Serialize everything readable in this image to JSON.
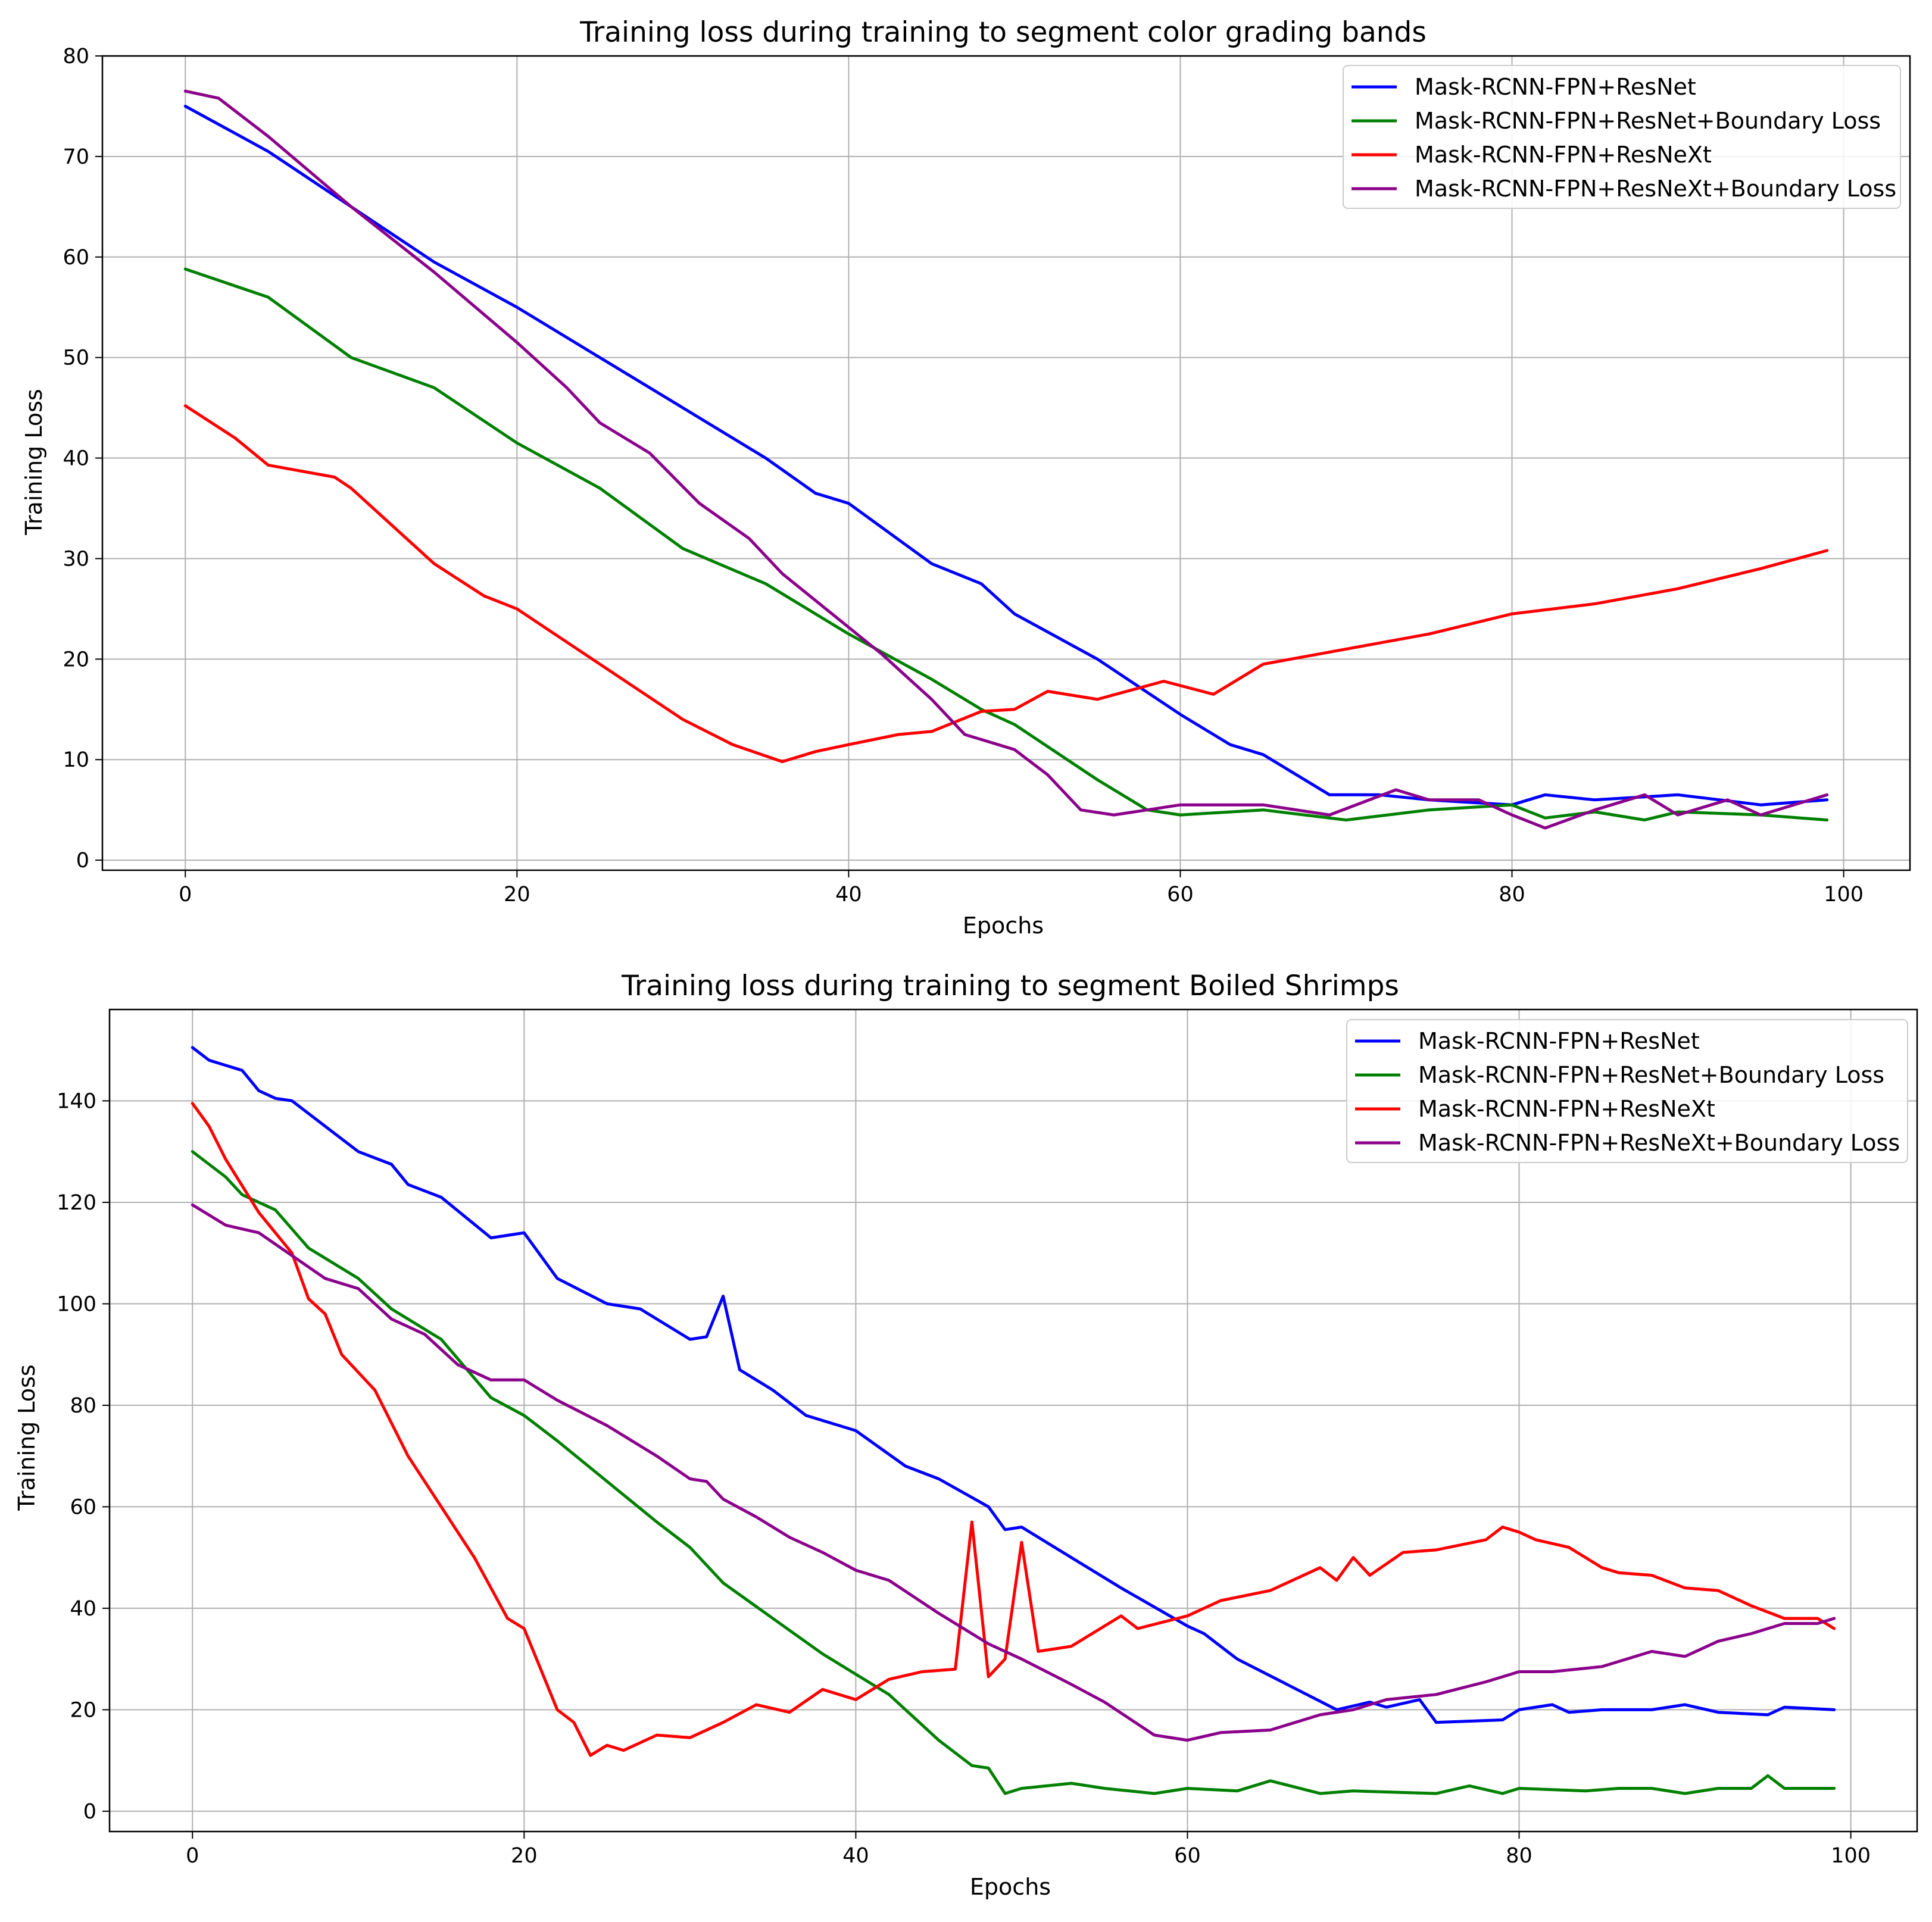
{
  "colors": {
    "resnet": "#0000ff",
    "resnet_boundary": "#008000",
    "resnext": "#ff0000",
    "resnext_boundary": "#8b008b",
    "grid": "#b0b0b0",
    "axis": "#000000"
  },
  "chart_data": [
    {
      "type": "line",
      "title": "Training loss during training to segment color grading bands",
      "xlabel": "Epochs",
      "ylabel": "Training Loss",
      "xlim": [
        -5,
        104
      ],
      "ylim": [
        -1,
        80
      ],
      "xticks": [
        0,
        20,
        40,
        60,
        80,
        100
      ],
      "yticks": [
        0,
        10,
        20,
        30,
        40,
        50,
        60,
        70,
        80
      ],
      "grid": true,
      "legend_position": "top-right",
      "series": [
        {
          "name": "Mask-RCNN-FPN+ResNet",
          "color_key": "resnet",
          "x": [
            0,
            5,
            10,
            15,
            20,
            25,
            30,
            35,
            38,
            40,
            45,
            48,
            50,
            55,
            60,
            63,
            65,
            69,
            72,
            75,
            80,
            82,
            85,
            90,
            95,
            99
          ],
          "y": [
            75.0,
            70.5,
            65.0,
            59.5,
            55.0,
            50.0,
            45.0,
            40.0,
            36.5,
            35.5,
            29.5,
            27.5,
            24.5,
            20.0,
            14.5,
            11.5,
            10.5,
            6.5,
            6.5,
            6.0,
            5.5,
            6.5,
            6.0,
            6.5,
            5.5,
            6.0
          ]
        },
        {
          "name": "Mask-RCNN-FPN+ResNet+Boundary Loss",
          "color_key": "resnet_boundary",
          "x": [
            0,
            5,
            10,
            15,
            20,
            25,
            30,
            35,
            40,
            45,
            48,
            50,
            55,
            58,
            60,
            65,
            70,
            75,
            80,
            82,
            85,
            88,
            90,
            95,
            99
          ],
          "y": [
            58.8,
            56.0,
            50.0,
            47.0,
            41.5,
            37.0,
            31.0,
            27.5,
            22.5,
            18.0,
            15.0,
            13.5,
            8.0,
            5.0,
            4.5,
            5.0,
            4.0,
            5.0,
            5.5,
            4.2,
            4.8,
            4.0,
            4.8,
            4.5,
            4.0
          ]
        },
        {
          "name": "Mask-RCNN-FPN+ResNeXt",
          "color_key": "resnext",
          "x": [
            0,
            3,
            5,
            9,
            10,
            15,
            18,
            20,
            25,
            30,
            33,
            36,
            38,
            40,
            43,
            45,
            48,
            50,
            52,
            55,
            59,
            62,
            65,
            70,
            75,
            80,
            85,
            90,
            95,
            99
          ],
          "y": [
            45.2,
            42.0,
            39.3,
            38.1,
            37.0,
            29.5,
            26.3,
            25.0,
            19.5,
            14.0,
            11.5,
            9.8,
            10.8,
            11.5,
            12.5,
            12.8,
            14.8,
            15.0,
            16.8,
            16.0,
            17.8,
            16.5,
            19.5,
            21.0,
            22.5,
            24.5,
            25.5,
            27.0,
            29.0,
            30.8
          ]
        },
        {
          "name": "Mask-RCNN-FPN+ResNeXt+Boundary Loss",
          "color_key": "resnext_boundary",
          "x": [
            0,
            2,
            5,
            10,
            15,
            20,
            23,
            25,
            28,
            31,
            34,
            36,
            39,
            42,
            45,
            47,
            50,
            52,
            54,
            56,
            58,
            60,
            65,
            69,
            73,
            75,
            78,
            80,
            82,
            85,
            88,
            90,
            93,
            95,
            99
          ],
          "y": [
            76.5,
            75.8,
            72.0,
            65.0,
            58.5,
            51.5,
            47.0,
            43.5,
            40.5,
            35.5,
            32.0,
            28.5,
            24.5,
            20.5,
            16.0,
            12.5,
            11.0,
            8.5,
            5.0,
            4.5,
            5.0,
            5.5,
            5.5,
            4.5,
            7.0,
            6.0,
            6.0,
            4.5,
            3.2,
            5.0,
            6.5,
            4.5,
            6.0,
            4.5,
            6.5
          ]
        }
      ]
    },
    {
      "type": "line",
      "title": "Training loss during training to segment Boiled Shrimps",
      "xlabel": "Epochs",
      "ylabel": "Training Loss",
      "xlim": [
        -5,
        104
      ],
      "ylim": [
        -4,
        158
      ],
      "xticks": [
        0,
        20,
        40,
        60,
        80,
        100
      ],
      "yticks": [
        0,
        20,
        40,
        60,
        80,
        100,
        120,
        140
      ],
      "grid": true,
      "legend_position": "top-right",
      "series": [
        {
          "name": "Mask-RCNN-FPN+ResNet",
          "color_key": "resnet",
          "x": [
            0,
            1,
            3,
            4,
            5,
            6,
            8,
            10,
            12,
            13,
            15,
            18,
            20,
            22,
            25,
            27,
            30,
            31,
            32,
            33,
            35,
            37,
            40,
            43,
            45,
            48,
            49,
            50,
            53,
            56,
            60,
            61,
            63,
            66,
            69,
            71,
            72,
            74,
            75,
            79,
            80,
            82,
            83,
            85,
            88,
            90,
            92,
            95,
            96,
            99
          ],
          "y": [
            150.5,
            148.0,
            146.0,
            142.0,
            140.5,
            140.0,
            135.0,
            130.0,
            127.5,
            123.5,
            121.0,
            113.0,
            114.0,
            105.0,
            100.0,
            99.0,
            93.0,
            93.5,
            101.5,
            87.0,
            83.0,
            78.0,
            75.0,
            68.0,
            65.5,
            60.0,
            55.5,
            56.0,
            50.0,
            44.0,
            36.5,
            35.0,
            30.0,
            25.0,
            20.0,
            21.5,
            20.5,
            22.0,
            17.5,
            18.0,
            20.0,
            21.0,
            19.5,
            20.0,
            20.0,
            21.0,
            19.5,
            19.0,
            20.5,
            20.0
          ]
        },
        {
          "name": "Mask-RCNN-FPN+ResNet+Boundary Loss",
          "color_key": "resnet_boundary",
          "x": [
            0,
            2,
            3,
            5,
            7,
            10,
            12,
            15,
            18,
            20,
            22,
            25,
            28,
            30,
            32,
            35,
            38,
            40,
            42,
            45,
            47,
            48,
            49,
            50,
            53,
            55,
            58,
            60,
            63,
            65,
            68,
            70,
            75,
            77,
            79,
            80,
            84,
            86,
            88,
            90,
            92,
            94,
            95,
            96,
            99
          ],
          "y": [
            130.0,
            125.0,
            121.5,
            118.5,
            111.0,
            105.0,
            99.0,
            93.0,
            81.5,
            78.0,
            73.0,
            65.0,
            57.0,
            52.0,
            45.0,
            38.0,
            31.0,
            27.0,
            23.0,
            14.0,
            9.0,
            8.5,
            3.5,
            4.5,
            5.5,
            4.5,
            3.5,
            4.5,
            4.0,
            6.0,
            3.5,
            4.0,
            3.5,
            5.0,
            3.5,
            4.5,
            4.0,
            4.5,
            4.5,
            3.5,
            4.5,
            4.5,
            7.0,
            4.5,
            4.5
          ]
        },
        {
          "name": "Mask-RCNN-FPN+ResNeXt",
          "color_key": "resnext",
          "x": [
            0,
            1,
            2,
            4,
            6,
            7,
            8,
            9,
            11,
            13,
            15,
            17,
            19,
            20,
            21,
            22,
            23,
            24,
            25,
            26,
            28,
            30,
            32,
            34,
            36,
            38,
            40,
            42,
            44,
            46,
            47,
            48,
            49,
            50,
            51,
            53,
            55,
            56,
            57,
            60,
            62,
            65,
            68,
            69,
            70,
            71,
            73,
            75,
            78,
            79,
            80,
            81,
            83,
            85,
            86,
            88,
            90,
            92,
            94,
            96,
            98,
            99
          ],
          "y": [
            139.5,
            135.0,
            128.5,
            118.0,
            110.0,
            101.0,
            98.0,
            90.0,
            83.0,
            70.0,
            60.0,
            50.0,
            38.0,
            36.0,
            28.0,
            20.0,
            17.5,
            11.0,
            13.0,
            12.0,
            15.0,
            14.5,
            17.5,
            21.0,
            19.5,
            24.0,
            22.0,
            26.0,
            27.5,
            28.0,
            57.0,
            26.5,
            30.0,
            53.0,
            31.5,
            32.5,
            36.5,
            38.5,
            36.0,
            38.5,
            41.5,
            43.5,
            48.0,
            45.5,
            50.0,
            46.5,
            51.0,
            51.5,
            53.5,
            56.0,
            55.0,
            53.5,
            52.0,
            48.0,
            47.0,
            46.5,
            44.0,
            43.5,
            40.5,
            38.0,
            38.0,
            36.0
          ]
        },
        {
          "name": "Mask-RCNN-FPN+ResNeXt+Boundary Loss",
          "color_key": "resnext_boundary",
          "x": [
            0,
            2,
            4,
            6,
            8,
            10,
            12,
            14,
            16,
            18,
            20,
            22,
            25,
            28,
            30,
            31,
            32,
            34,
            36,
            38,
            40,
            42,
            45,
            48,
            50,
            53,
            55,
            58,
            60,
            62,
            65,
            68,
            70,
            72,
            75,
            78,
            80,
            82,
            85,
            88,
            90,
            92,
            94,
            96,
            98,
            99
          ],
          "y": [
            119.5,
            115.5,
            114.0,
            109.5,
            105.0,
            103.0,
            97.0,
            94.0,
            88.0,
            85.0,
            85.0,
            81.0,
            76.0,
            70.0,
            65.5,
            65.0,
            61.5,
            58.0,
            54.0,
            51.0,
            47.5,
            45.5,
            39.0,
            33.0,
            30.0,
            25.0,
            21.5,
            15.0,
            14.0,
            15.5,
            16.0,
            19.0,
            20.0,
            22.0,
            23.0,
            25.5,
            27.5,
            27.5,
            28.5,
            31.5,
            30.5,
            33.5,
            35.0,
            37.0,
            37.0,
            38.0
          ]
        }
      ]
    }
  ]
}
